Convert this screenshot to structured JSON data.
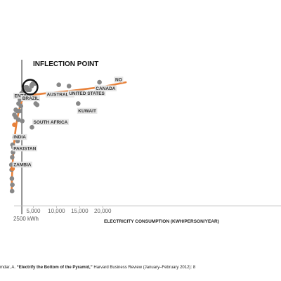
{
  "chart_data": {
    "type": "scatter",
    "xlabel": "ELECTRICITY CONSUMPTION (KWH/PERSON/YEAR)",
    "x_ticks": [
      5000,
      10000,
      15000,
      20000
    ],
    "x_tick_labels": [
      "5,000",
      "10,000",
      "15,000",
      "20,000"
    ],
    "reference_line": {
      "x": 2500,
      "label": "2500 kWh"
    },
    "annotation": {
      "title": "INFLECTION POINT",
      "x": 2500
    },
    "points": [
      {
        "x": 400,
        "y": 15
      },
      {
        "x": 450,
        "y": 20
      },
      {
        "x": 350,
        "y": 25
      },
      {
        "x": 300,
        "y": 32
      },
      {
        "x": 250,
        "y": 36
      },
      {
        "x": 420,
        "y": 42
      },
      {
        "x": 600,
        "y": 46
      },
      {
        "x": 500,
        "y": 52
      },
      {
        "x": 700,
        "y": 50
      },
      {
        "x": 900,
        "y": 58
      },
      {
        "x": 1600,
        "y": 55
      },
      {
        "x": 1200,
        "y": 74
      },
      {
        "x": 1800,
        "y": 72
      },
      {
        "x": 2600,
        "y": 71
      },
      {
        "x": 900,
        "y": 76
      },
      {
        "x": 1500,
        "y": 79
      },
      {
        "x": 2000,
        "y": 79
      },
      {
        "x": 1200,
        "y": 80
      },
      {
        "x": 2300,
        "y": 83
      },
      {
        "x": 2100,
        "y": 88
      },
      {
        "x": 1800,
        "y": 85
      },
      {
        "x": 2800,
        "y": 90
      },
      {
        "x": 2400,
        "y": 93
      },
      {
        "x": 3000,
        "y": 94
      },
      {
        "x": 3800,
        "y": 96
      },
      {
        "x": 4200,
        "y": 96
      },
      {
        "x": 2900,
        "y": 97
      },
      {
        "x": 3300,
        "y": 98
      },
      {
        "x": 3600,
        "y": 98
      },
      {
        "x": 4700,
        "y": 100
      },
      {
        "x": 4900,
        "y": 101
      },
      {
        "x": 5300,
        "y": 101
      },
      {
        "x": 4600,
        "y": 99
      },
      {
        "x": 5500,
        "y": 85
      },
      {
        "x": 5800,
        "y": 84
      },
      {
        "x": 4700,
        "y": 66
      },
      {
        "x": 10500,
        "y": 100
      },
      {
        "x": 12700,
        "y": 99
      },
      {
        "x": 14700,
        "y": 85
      },
      {
        "x": 19300,
        "y": 102
      }
    ],
    "labels": [
      {
        "text": "NO",
        "x": 22700,
        "y": 103
      },
      {
        "text": "ENTINA",
        "x": 900,
        "y": 90
      },
      {
        "text": "BRAZIL",
        "x": 2600,
        "y": 88
      },
      {
        "text": "AUSTRALIA",
        "x": 7900,
        "y": 91
      },
      {
        "text": "UNITED STATES",
        "x": 12700,
        "y": 92
      },
      {
        "text": "CANADA",
        "x": 18500,
        "y": 96
      },
      {
        "text": "KUWAIT",
        "x": 14700,
        "y": 78
      },
      {
        "text": "SOUTH AFRICA",
        "x": 5000,
        "y": 69
      },
      {
        "text": "INDIA",
        "x": 700,
        "y": 57
      },
      {
        "text": "PAKISTAN",
        "x": 700,
        "y": 48
      },
      {
        "text": "ZAMBIA",
        "x": 700,
        "y": 35
      }
    ],
    "trend": [
      [
        300,
        15
      ],
      [
        400,
        28
      ],
      [
        600,
        42
      ],
      [
        900,
        56
      ],
      [
        1300,
        68
      ],
      [
        1800,
        78
      ],
      [
        2400,
        86
      ],
      [
        3000,
        89
      ],
      [
        4000,
        91
      ],
      [
        6000,
        92.5
      ],
      [
        10000,
        94
      ],
      [
        15000,
        96
      ],
      [
        20000,
        98.5
      ],
      [
        25000,
        102
      ]
    ],
    "trend_color": "#E8813A",
    "point_color": "#888888",
    "highlight_points": [
      {
        "x": 900,
        "y": 68,
        "color": "#E8813A"
      },
      {
        "x": 500,
        "y": 33,
        "color": "#E8813A"
      }
    ]
  },
  "source_text": {
    "prefix": "mdar, A. ",
    "title": "“Electrify the Bottom of the Pyramid,”",
    "rest": " Harvard Business Review (January–February 2012): 8"
  }
}
